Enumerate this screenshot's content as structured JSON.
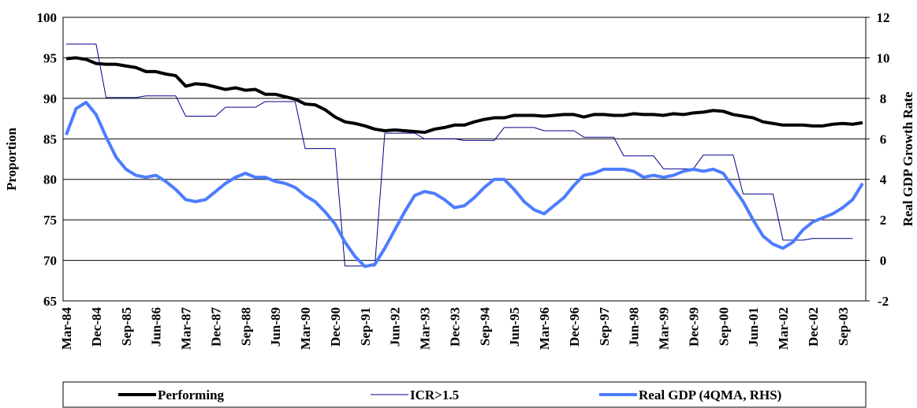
{
  "chart_data": {
    "type": "line",
    "y_label": "Proportion",
    "y2_label": "Real GDP Growth Rate",
    "categories": [
      "Mar-84",
      null,
      null,
      "Dec-84",
      null,
      null,
      "Sep-85",
      null,
      null,
      "Jun-86",
      null,
      null,
      "Mar-87",
      null,
      null,
      "Dec-87",
      null,
      null,
      "Sep-88",
      null,
      null,
      "Jun-89",
      null,
      null,
      "Mar-90",
      null,
      null,
      "Dec-90",
      null,
      null,
      "Sep-91",
      null,
      null,
      "Jun-92",
      null,
      null,
      "Mar-93",
      null,
      null,
      "Dec-93",
      null,
      null,
      "Sep-94",
      null,
      null,
      "Jun-95",
      null,
      null,
      "Mar-96",
      null,
      null,
      "Dec-96",
      null,
      null,
      "Sep-97",
      null,
      null,
      "Jun-98",
      null,
      null,
      "Mar-99",
      null,
      null,
      "Dec-99",
      null,
      null,
      "Sep-00",
      null,
      null,
      "Jun-01",
      null,
      null,
      "Mar-02",
      null,
      null,
      "Dec-02",
      null,
      null,
      "Sep-03",
      null,
      null
    ],
    "series": [
      {
        "name": "Performing",
        "color": "#000000",
        "width": 4,
        "values": [
          94.9,
          95.0,
          94.8,
          94.3,
          94.2,
          94.2,
          94.0,
          93.8,
          93.3,
          93.3,
          93.0,
          92.8,
          91.5,
          91.8,
          91.7,
          91.4,
          91.1,
          91.3,
          91.0,
          91.1,
          90.5,
          90.5,
          90.2,
          89.9,
          89.3,
          89.2,
          88.6,
          87.7,
          87.1,
          86.9,
          86.6,
          86.2,
          86.0,
          86.1,
          86.0,
          85.9,
          85.8,
          86.2,
          86.4,
          86.7,
          86.7,
          87.1,
          87.4,
          87.6,
          87.6,
          87.9,
          87.9,
          87.9,
          87.8,
          87.9,
          88.0,
          88.0,
          87.7,
          88.0,
          88.0,
          87.9,
          87.9,
          88.1,
          88.0,
          88.0,
          87.9,
          88.1,
          88.0,
          88.2,
          88.3,
          88.5,
          88.4,
          88.0,
          87.8,
          87.6,
          87.1,
          86.9,
          86.7,
          86.7,
          86.7,
          86.6,
          86.6,
          86.8,
          86.9,
          86.8,
          87.0
        ]
      },
      {
        "name": "ICR>1.5",
        "color": "#00008b",
        "width": 1,
        "values": [
          96.7,
          96.7,
          96.7,
          96.7,
          90.1,
          90.1,
          90.1,
          90.1,
          90.3,
          90.3,
          90.3,
          90.3,
          87.8,
          87.8,
          87.8,
          87.8,
          88.9,
          88.9,
          88.9,
          88.9,
          89.6,
          89.6,
          89.6,
          89.6,
          83.8,
          83.8,
          83.8,
          83.8,
          69.3,
          69.3,
          69.3,
          69.3,
          85.7,
          85.7,
          85.7,
          85.7,
          85.0,
          85.0,
          85.0,
          85.0,
          84.8,
          84.8,
          84.8,
          84.8,
          86.4,
          86.4,
          86.4,
          86.4,
          86.0,
          86.0,
          86.0,
          86.0,
          85.2,
          85.2,
          85.2,
          85.2,
          82.9,
          82.9,
          82.9,
          82.9,
          81.3,
          81.3,
          81.3,
          81.3,
          83.0,
          83.0,
          83.0,
          83.0,
          78.2,
          78.2,
          78.2,
          78.2,
          72.5,
          72.5,
          72.5,
          72.7,
          72.7,
          72.7,
          72.7,
          72.7,
          null
        ]
      },
      {
        "name": "Real GDP (4QMA, RHS)",
        "color": "#4d7cff",
        "width": 4,
        "axis": "y2",
        "values": [
          6.2,
          7.5,
          7.8,
          7.2,
          6.1,
          5.1,
          4.5,
          4.2,
          4.1,
          4.2,
          3.9,
          3.5,
          3.0,
          2.9,
          3.0,
          3.4,
          3.8,
          4.1,
          4.3,
          4.1,
          4.1,
          3.9,
          3.8,
          3.6,
          3.2,
          2.9,
          2.4,
          1.8,
          0.9,
          0.2,
          -0.3,
          -0.2,
          0.6,
          1.5,
          2.4,
          3.2,
          3.4,
          3.3,
          3.0,
          2.6,
          2.7,
          3.1,
          3.6,
          4.0,
          4.0,
          3.5,
          2.9,
          2.5,
          2.3,
          2.7,
          3.1,
          3.7,
          4.2,
          4.3,
          4.5,
          4.5,
          4.5,
          4.4,
          4.1,
          4.2,
          4.1,
          4.2,
          4.4,
          4.5,
          4.4,
          4.5,
          4.3,
          3.6,
          2.9,
          2.0,
          1.2,
          0.8,
          0.6,
          0.9,
          1.5,
          1.9,
          2.1,
          2.3,
          2.6,
          3.0,
          3.8
        ]
      }
    ],
    "ylim": [
      65,
      100
    ],
    "yticks": [
      65,
      70,
      75,
      80,
      85,
      90,
      95,
      100
    ],
    "y2lim": [
      -2,
      12
    ],
    "y2ticks": [
      -2,
      0,
      2,
      4,
      6,
      8,
      10,
      12
    ],
    "grid": true,
    "legend": "bottom"
  }
}
